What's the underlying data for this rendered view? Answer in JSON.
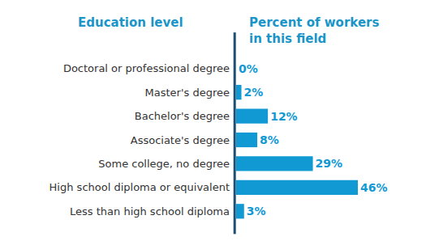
{
  "chart_data": {
    "type": "bar",
    "orientation": "horizontal",
    "ylabel": "Education level",
    "xlabel": "Percent of workers in this field",
    "categories": [
      "Doctoral or professional degree",
      "Master's degree",
      "Bachelor's degree",
      "Associate's degree",
      "Some college, no degree",
      "High school diploma or equivalent",
      "Less than high school diploma"
    ],
    "values": [
      0,
      2,
      12,
      8,
      29,
      46,
      3
    ],
    "value_labels": [
      "0%",
      "2%",
      "12%",
      "8%",
      "29%",
      "46%",
      "3%"
    ],
    "color": "#1199d3",
    "xlim": [
      0,
      46
    ],
    "data_labels": true,
    "tick_labels": "y",
    "grid": false
  }
}
